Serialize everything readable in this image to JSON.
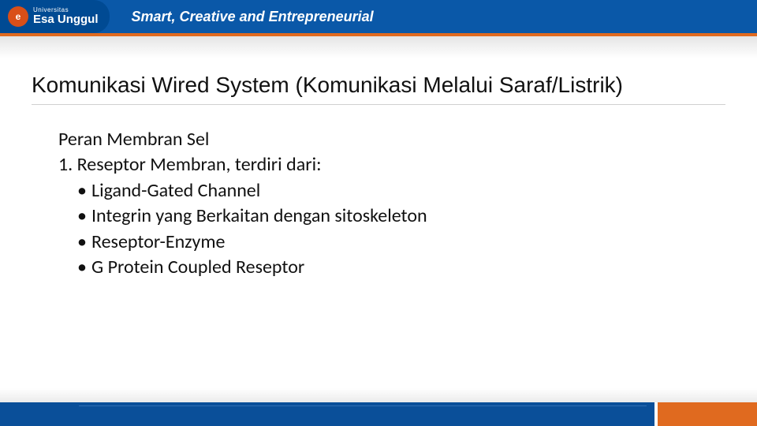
{
  "colors": {
    "header_blue": "#0a58a8",
    "header_dark_blue": "#004a93",
    "accent_orange": "#e06a1f",
    "logo_orange": "#d94f18",
    "footer_blue": "#0a4f99",
    "text": "#111111",
    "white": "#ffffff"
  },
  "typography": {
    "title_fontsize": 28,
    "body_fontsize": 24,
    "tagline_fontsize": 18
  },
  "header": {
    "logo_letter": "e",
    "logo_small": "Universitas",
    "logo_main": "Esa Unggul",
    "tagline": "Smart, Creative and Entrepreneurial"
  },
  "slide": {
    "title": "Komunikasi Wired System (Komunikasi Melalui Saraf/Listrik)",
    "heading": "Peran Membran Sel",
    "numbered": "1. Reseptor Membran, terdiri dari:",
    "bullets": [
      "Ligand-Gated Channel",
      "Integrin yang Berkaitan dengan sitoskeleton",
      "Reseptor-Enzyme",
      "G Protein Coupled Reseptor"
    ]
  }
}
